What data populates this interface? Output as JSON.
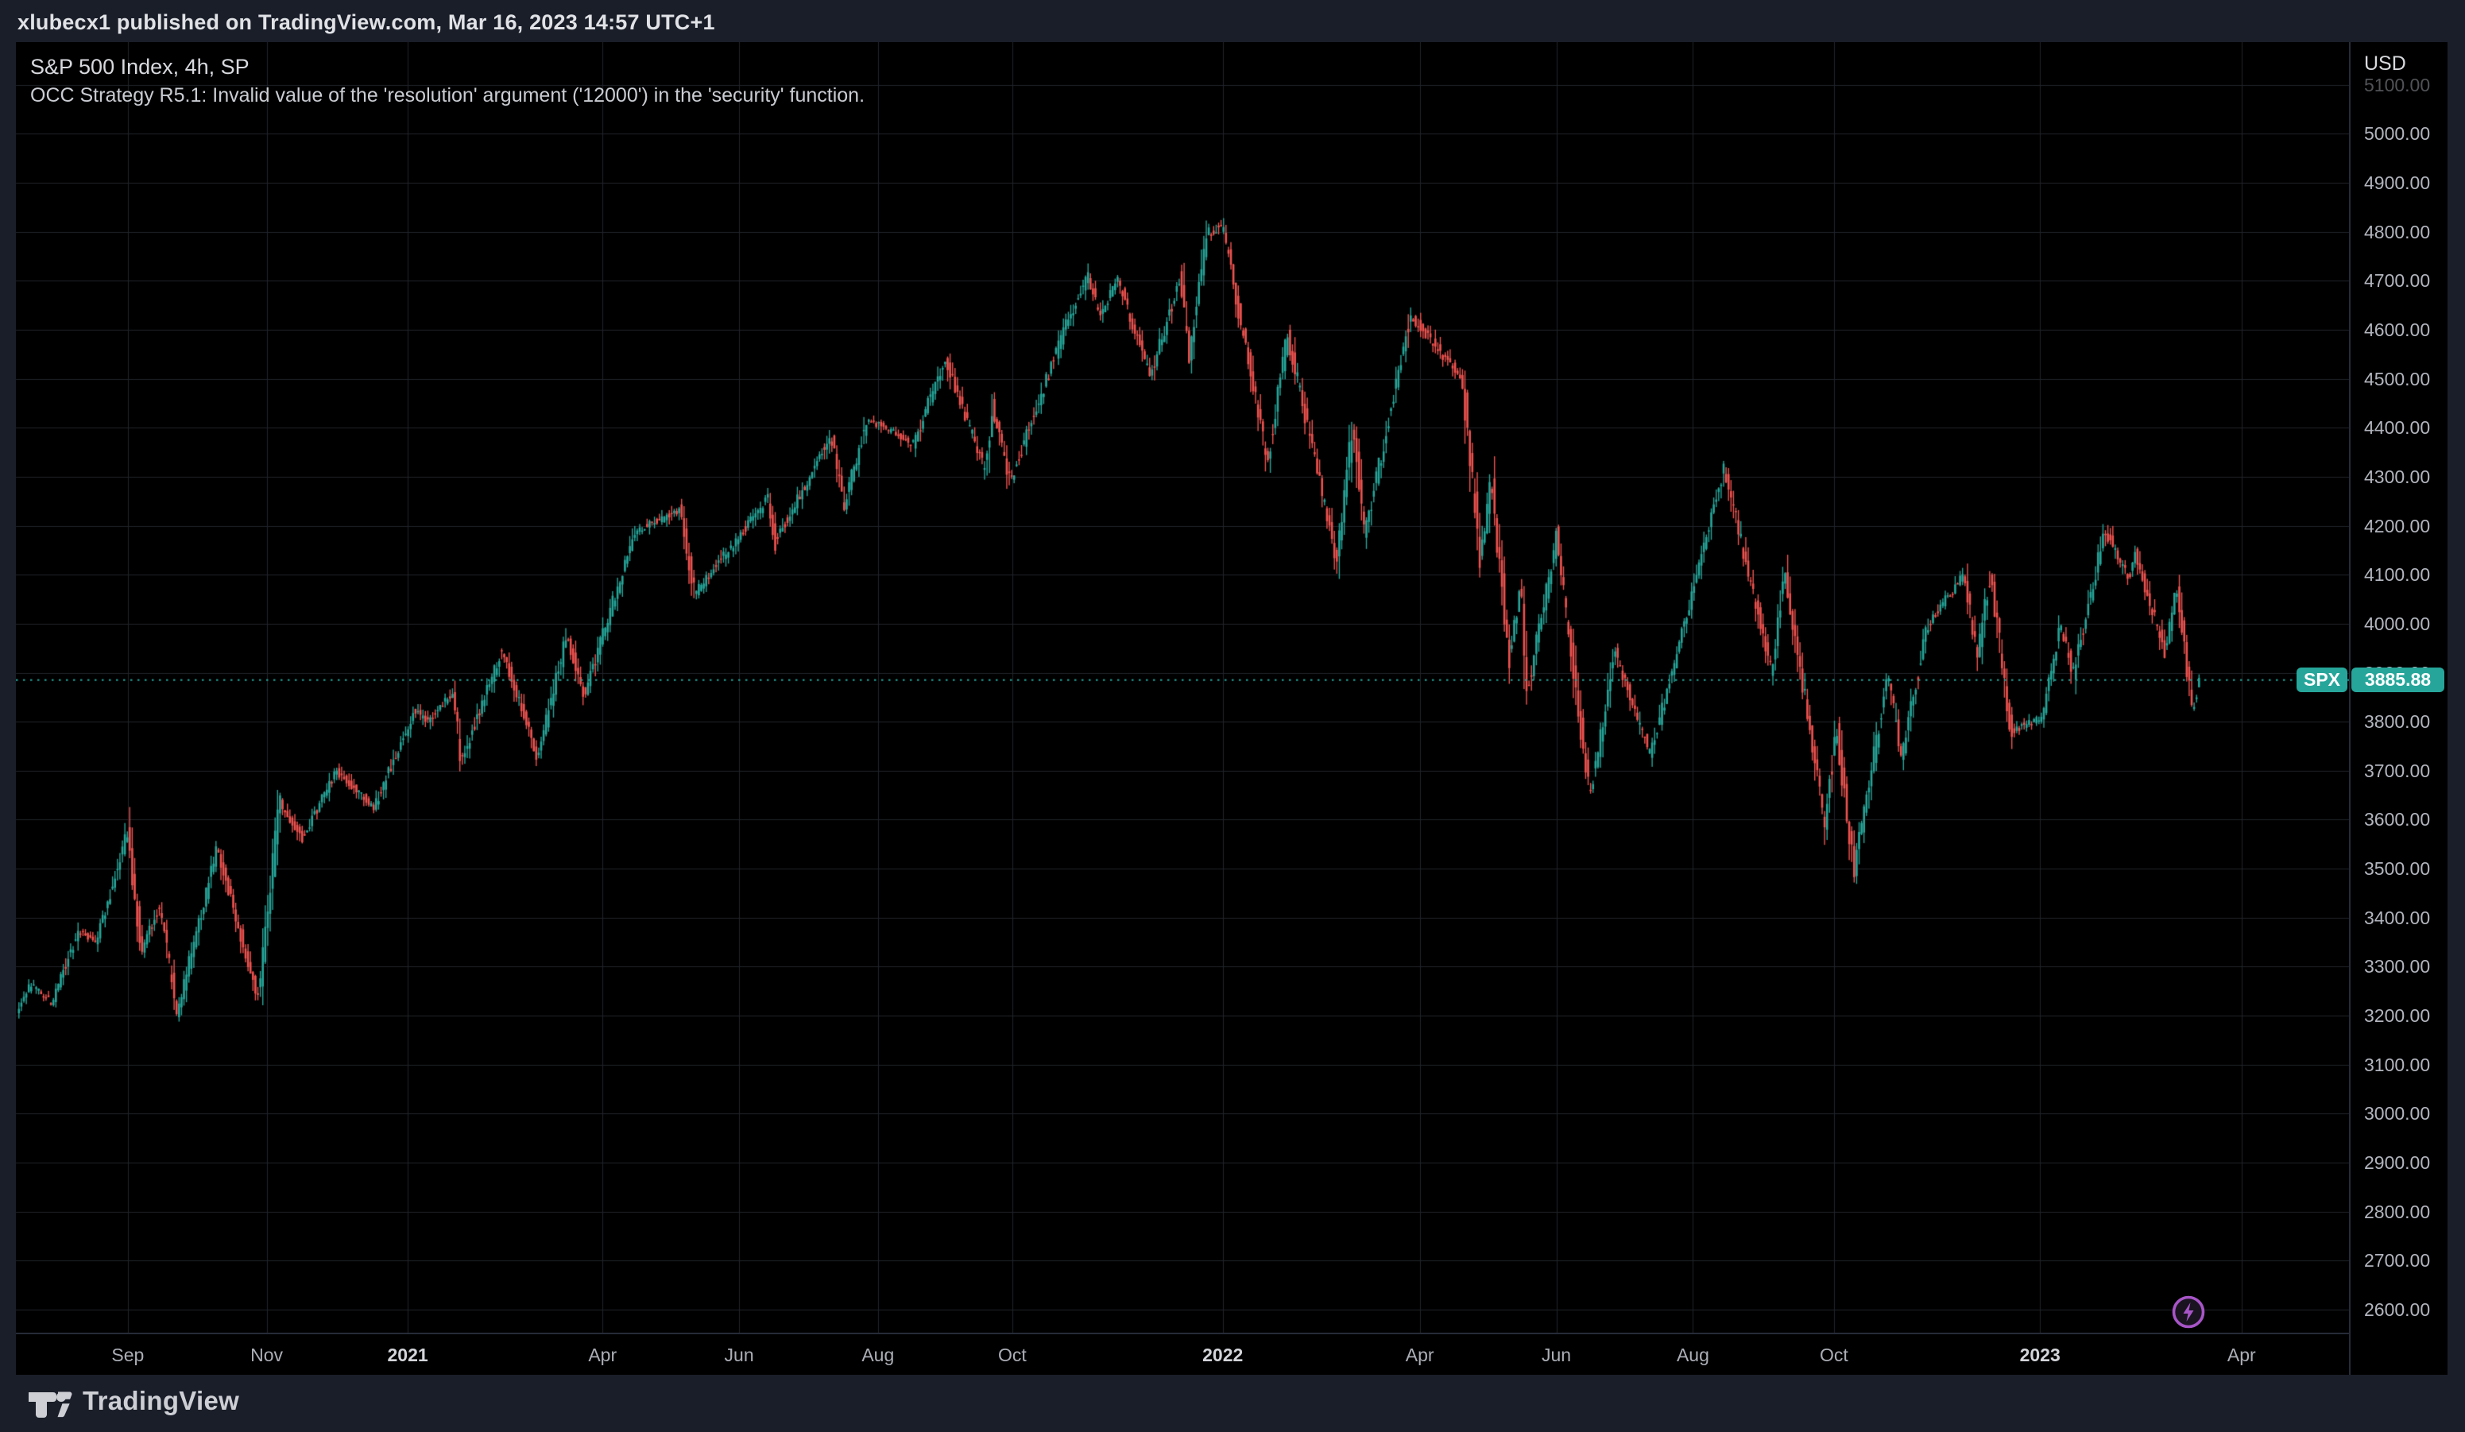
{
  "header": {
    "text": "xlubecx1 published on TradingView.com, Mar 16, 2023 14:57 UTC+1"
  },
  "chart": {
    "title": "S&P 500 Index, 4h, SP",
    "status_message": "OCC Strategy R5.1: Invalid value of the 'resolution' argument ('12000') in the 'security' function.",
    "symbol_badge": "SPX",
    "last_price": "3885.88",
    "currency_label": "USD"
  },
  "footer": {
    "brand": "TradingView"
  },
  "colors": {
    "background_outer": "#1a1e29",
    "background_chart": "#000000",
    "grid": "#20242a",
    "candle_up": "#26a69a",
    "candle_down": "#ef5350",
    "price_line": "#26a69a",
    "badge": "#26a69a",
    "axis_text": "#b2b5be",
    "accent_flash": "#a855c8"
  },
  "chart_data": {
    "type": "candlestick",
    "symbol": "SPX",
    "name": "S&P 500 Index",
    "timeframe": "4h",
    "exchange": "SP",
    "last_price": 3885.88,
    "price_line": 3885.88,
    "grid": true,
    "y_axis": {
      "currency": "USD",
      "visible_range": [
        2553,
        5187
      ],
      "ticks": [
        "5100.00",
        "5000.00",
        "4900.00",
        "4800.00",
        "4700.00",
        "4600.00",
        "4500.00",
        "4400.00",
        "4300.00",
        "4200.00",
        "4100.00",
        "4000.00",
        "3900.00",
        "3800.00",
        "3700.00",
        "3600.00",
        "3500.00",
        "3400.00",
        "3300.00",
        "3200.00",
        "3100.00",
        "3000.00",
        "2900.00",
        "2800.00",
        "2700.00",
        "2600.00"
      ]
    },
    "x_axis": {
      "start": "2020-07-13",
      "end": "2023-05-21",
      "ticks": [
        {
          "label": "Sep",
          "date": "2020-09-01",
          "bold": false
        },
        {
          "label": "Nov",
          "date": "2020-11-02",
          "bold": false
        },
        {
          "label": "2021",
          "date": "2021-01-04",
          "bold": true
        },
        {
          "label": "Apr",
          "date": "2021-04-01",
          "bold": false
        },
        {
          "label": "Jun",
          "date": "2021-06-01",
          "bold": false
        },
        {
          "label": "Aug",
          "date": "2021-08-02",
          "bold": false
        },
        {
          "label": "Oct",
          "date": "2021-10-01",
          "bold": false
        },
        {
          "label": "2022",
          "date": "2022-01-03",
          "bold": true
        },
        {
          "label": "Apr",
          "date": "2022-04-01",
          "bold": false
        },
        {
          "label": "Jun",
          "date": "2022-06-01",
          "bold": false
        },
        {
          "label": "Aug",
          "date": "2022-08-01",
          "bold": false
        },
        {
          "label": "Oct",
          "date": "2022-10-03",
          "bold": false
        },
        {
          "label": "2023",
          "date": "2023-01-03",
          "bold": true
        },
        {
          "label": "Apr",
          "date": "2023-04-03",
          "bold": false
        }
      ]
    },
    "price_path_anchors": [
      [
        "2020-07-14",
        3208
      ],
      [
        "2020-07-21",
        3265
      ],
      [
        "2020-07-30",
        3225
      ],
      [
        "2020-08-11",
        3375
      ],
      [
        "2020-08-19",
        3350
      ],
      [
        "2020-09-02",
        3580
      ],
      [
        "2020-09-08",
        3325
      ],
      [
        "2020-09-16",
        3425
      ],
      [
        "2020-09-24",
        3205
      ],
      [
        "2020-10-12",
        3545
      ],
      [
        "2020-10-28",
        3268
      ],
      [
        "2020-10-30",
        3233
      ],
      [
        "2020-11-09",
        3638
      ],
      [
        "2020-11-19",
        3560
      ],
      [
        "2020-12-04",
        3700
      ],
      [
        "2020-12-21",
        3625
      ],
      [
        "2021-01-08",
        3825
      ],
      [
        "2021-01-14",
        3798
      ],
      [
        "2021-01-25",
        3862
      ],
      [
        "2021-01-29",
        3716
      ],
      [
        "2021-02-16",
        3948
      ],
      [
        "2021-03-04",
        3725
      ],
      [
        "2021-03-17",
        3975
      ],
      [
        "2021-03-25",
        3855
      ],
      [
        "2021-04-16",
        4185
      ],
      [
        "2021-05-07",
        4235
      ],
      [
        "2021-05-13",
        4060
      ],
      [
        "2021-06-15",
        4255
      ],
      [
        "2021-06-18",
        4165
      ],
      [
        "2021-07-13",
        4385
      ],
      [
        "2021-07-19",
        4238
      ],
      [
        "2021-07-29",
        4420
      ],
      [
        "2021-08-19",
        4368
      ],
      [
        "2021-09-02",
        4545
      ],
      [
        "2021-09-20",
        4310
      ],
      [
        "2021-09-23",
        4448
      ],
      [
        "2021-10-01",
        4288
      ],
      [
        "2021-10-26",
        4608
      ],
      [
        "2021-11-05",
        4712
      ],
      [
        "2021-11-10",
        4630
      ],
      [
        "2021-11-18",
        4702
      ],
      [
        "2021-12-03",
        4505
      ],
      [
        "2021-12-16",
        4710
      ],
      [
        "2021-12-20",
        4540
      ],
      [
        "2021-12-28",
        4795
      ],
      [
        "2022-01-04",
        4812
      ],
      [
        "2022-01-24",
        4330
      ],
      [
        "2022-02-02",
        4590
      ],
      [
        "2022-02-24",
        4125
      ],
      [
        "2022-03-03",
        4410
      ],
      [
        "2022-03-08",
        4175
      ],
      [
        "2022-03-29",
        4630
      ],
      [
        "2022-04-21",
        4500
      ],
      [
        "2022-04-29",
        4135
      ],
      [
        "2022-05-04",
        4290
      ],
      [
        "2022-05-12",
        3930
      ],
      [
        "2022-05-17",
        4085
      ],
      [
        "2022-05-20",
        3862
      ],
      [
        "2022-06-02",
        4175
      ],
      [
        "2022-06-17",
        3645
      ],
      [
        "2022-06-28",
        3945
      ],
      [
        "2022-07-14",
        3730
      ],
      [
        "2022-08-16",
        4318
      ],
      [
        "2022-09-06",
        3903
      ],
      [
        "2022-09-12",
        4110
      ],
      [
        "2022-09-30",
        3590
      ],
      [
        "2022-10-05",
        3790
      ],
      [
        "2022-10-13",
        3495
      ],
      [
        "2022-10-28",
        3898
      ],
      [
        "2022-11-03",
        3722
      ],
      [
        "2022-11-15",
        4000
      ],
      [
        "2022-12-01",
        4098
      ],
      [
        "2022-12-07",
        3938
      ],
      [
        "2022-12-13",
        4100
      ],
      [
        "2022-12-22",
        3780
      ],
      [
        "2023-01-05",
        3810
      ],
      [
        "2023-01-13",
        3998
      ],
      [
        "2023-01-19",
        3898
      ],
      [
        "2023-02-02",
        4192
      ],
      [
        "2023-02-13",
        4090
      ],
      [
        "2023-02-15",
        4148
      ],
      [
        "2023-03-01",
        3940
      ],
      [
        "2023-03-06",
        4072
      ],
      [
        "2023-03-13",
        3818
      ],
      [
        "2023-03-16",
        3885.88
      ]
    ]
  }
}
